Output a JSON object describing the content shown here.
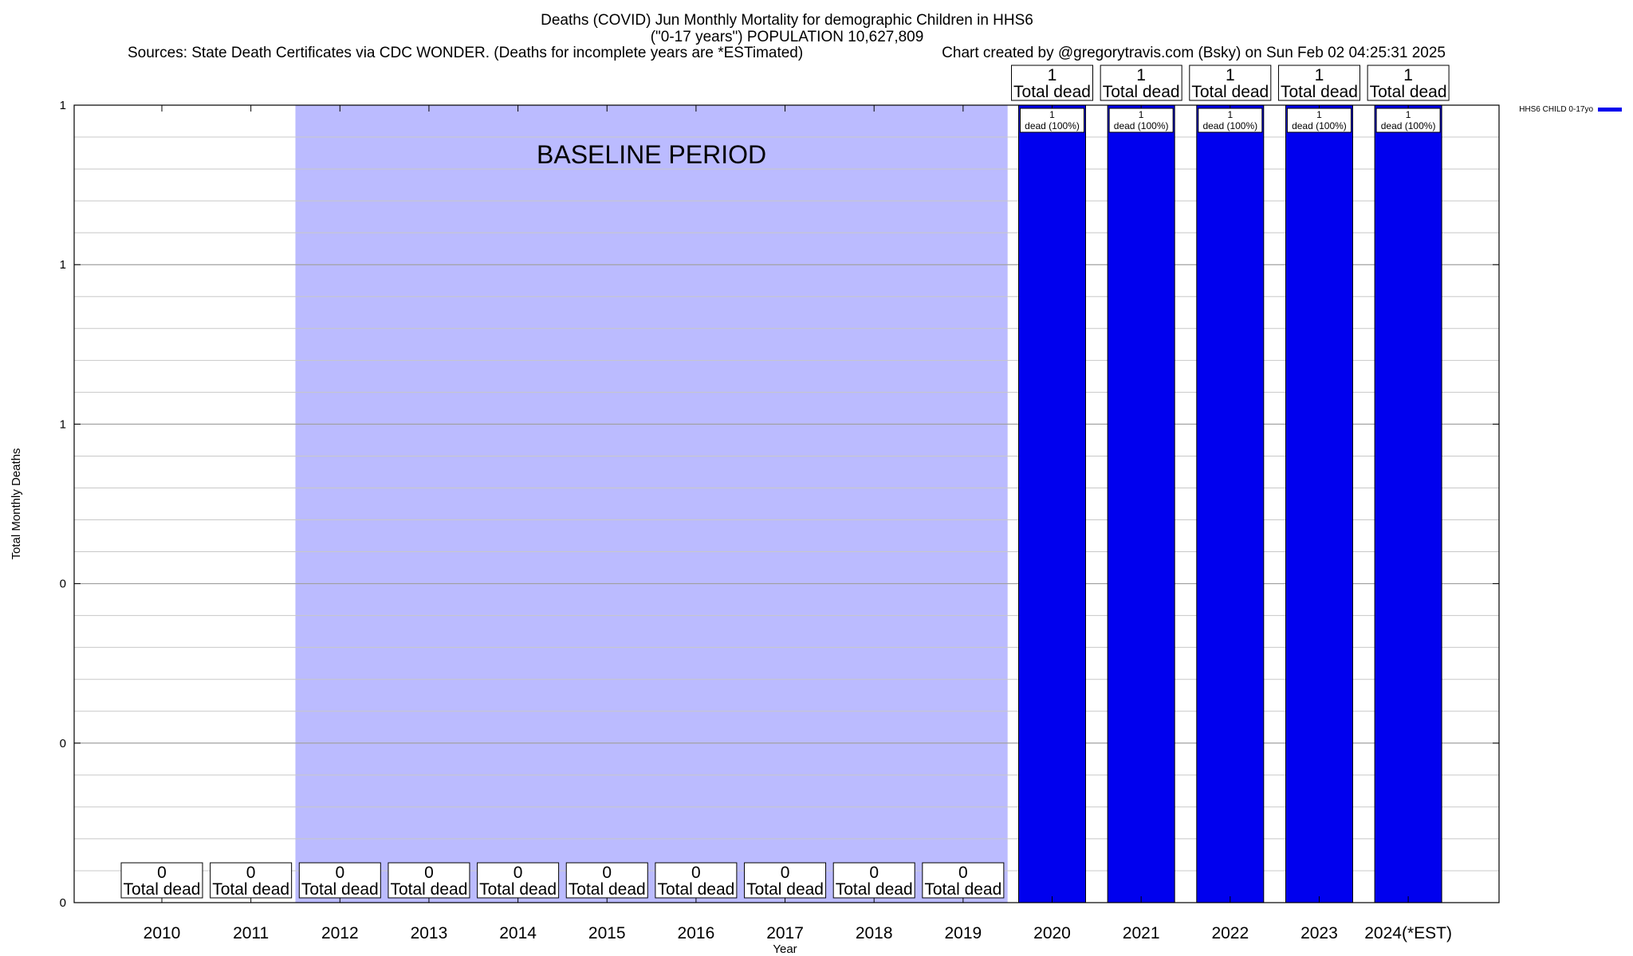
{
  "header": {
    "title_line1": "Deaths (COVID) Jun Monthly Mortality for demographic Children in HHS6",
    "title_line2": "(\"0-17 years\") POPULATION 10,627,809",
    "sources": "Sources: State Death Certificates via CDC WONDER. (Deaths for incomplete years are *ESTimated)",
    "credit": "Chart created by @gregorytravis.com (Bsky) on Sun Feb 02 04:25:31 2025"
  },
  "chart_data": {
    "type": "bar",
    "title": "Deaths (COVID) Jun Monthly Mortality for demographic Children in HHS6",
    "subtitle": "(\"0-17 years\") POPULATION 10,627,809",
    "xlabel": "Year",
    "ylabel": "Total Monthly Deaths",
    "categories": [
      "2010",
      "2011",
      "2012",
      "2013",
      "2014",
      "2015",
      "2016",
      "2017",
      "2018",
      "2019",
      "2020",
      "2021",
      "2022",
      "2023",
      "2024(*EST)"
    ],
    "series": [
      {
        "name": "HHS6 CHILD 0-17yo",
        "color": "#0000ee",
        "values": [
          0,
          0,
          0,
          0,
          0,
          0,
          0,
          0,
          0,
          0,
          1,
          1,
          1,
          1,
          1
        ]
      }
    ],
    "total_labels": [
      "0",
      "0",
      "0",
      "0",
      "0",
      "0",
      "0",
      "0",
      "0",
      "0",
      "1",
      "1",
      "1",
      "1",
      "1"
    ],
    "total_suffix": "Total dead",
    "inbar_labels": [
      {
        "index": 10,
        "count": "1",
        "text": "dead (100%)"
      },
      {
        "index": 11,
        "count": "1",
        "text": "dead (100%)"
      },
      {
        "index": 12,
        "count": "1",
        "text": "dead (100%)"
      },
      {
        "index": 13,
        "count": "1",
        "text": "dead (100%)"
      },
      {
        "index": 14,
        "count": "1",
        "text": "dead (100%)"
      }
    ],
    "ylim": [
      0,
      1
    ],
    "yticks": [
      {
        "value": 0,
        "label": "0"
      },
      {
        "value": 0.2,
        "label": "0"
      },
      {
        "value": 0.4,
        "label": "0"
      },
      {
        "value": 0.6,
        "label": "1"
      },
      {
        "value": 0.8,
        "label": "1"
      },
      {
        "value": 1,
        "label": "1"
      }
    ],
    "minor_grid_step": 0.04,
    "grid": true,
    "baseline": {
      "label": "BASELINE PERIOD",
      "from_index": 2,
      "to_index": 9,
      "color": "#bbbbff"
    },
    "legend_position": "top-right"
  }
}
